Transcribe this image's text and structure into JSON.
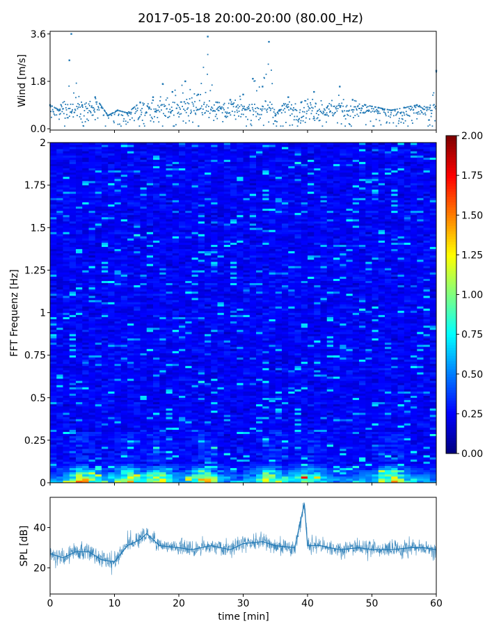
{
  "chart_data": [
    {
      "panel": "wind",
      "type": "scatter",
      "title": "2017-05-18 20:00-20:00 (80.00_Hz)",
      "ylabel": "Wind [m/s]",
      "ylim": [
        -0.05,
        3.7
      ],
      "yticks": [
        "0.0",
        "1.8",
        "3.6"
      ],
      "color": "#1f77b4",
      "x": [
        0,
        1.5,
        3,
        3.3,
        5,
        7,
        9,
        10.5,
        12,
        14,
        16,
        17.5,
        19,
        21,
        23,
        24.5,
        26,
        28,
        30,
        31.5,
        33,
        34,
        35,
        37,
        39,
        41,
        43,
        45,
        47,
        49,
        51,
        53,
        55,
        57,
        59,
        60
      ],
      "y": [
        0.9,
        0.7,
        2.6,
        3.6,
        0.9,
        1.2,
        0.5,
        0.7,
        0.6,
        1.0,
        1.2,
        1.7,
        1.4,
        1.8,
        1.3,
        3.5,
        1.0,
        1.1,
        1.3,
        1.9,
        1.6,
        3.3,
        0.5,
        1.2,
        1.0,
        1.4,
        0.8,
        1.6,
        1.1,
        0.9,
        0.8,
        0.7,
        0.8,
        0.9,
        0.8,
        2.2
      ]
    },
    {
      "panel": "spectrogram",
      "type": "heatmap",
      "ylabel": "FFT Frequenz [Hz]",
      "ylim": [
        0,
        2
      ],
      "yticks": [
        "0",
        "0.25",
        "0.5",
        "0.75",
        "1",
        "1.25",
        "1.5",
        "1.75",
        "2"
      ],
      "colorbar": {
        "colormap": "jet",
        "range": [
          0,
          2
        ],
        "ticks": [
          "0.00",
          "0.25",
          "0.50",
          "0.75",
          "1.00",
          "1.25",
          "1.50",
          "1.75",
          "2.00"
        ]
      },
      "high_power_times_min": [
        5,
        12,
        17,
        24,
        34,
        40,
        53
      ]
    },
    {
      "panel": "spl",
      "type": "line",
      "ylabel": "SPL [dB]",
      "xlabel": "time [min]",
      "xlim": [
        0,
        60
      ],
      "xticks": [
        "0",
        "10",
        "20",
        "30",
        "40",
        "50",
        "60"
      ],
      "ylim": [
        7,
        55
      ],
      "yticks": [
        "20",
        "40"
      ],
      "color": "#1f77b4",
      "x": [
        0,
        2,
        4,
        6,
        8,
        10,
        12,
        14,
        15,
        17,
        20,
        22,
        25,
        28,
        30,
        33,
        35,
        38,
        39.5,
        40,
        42,
        45,
        48,
        50,
        53,
        56,
        58,
        60
      ],
      "y": [
        27,
        25,
        28,
        28,
        24,
        23,
        31,
        34,
        37,
        31,
        30,
        29,
        31,
        29,
        32,
        33,
        31,
        30,
        52,
        31,
        31,
        29,
        30,
        29,
        29,
        30,
        30,
        29
      ]
    }
  ]
}
